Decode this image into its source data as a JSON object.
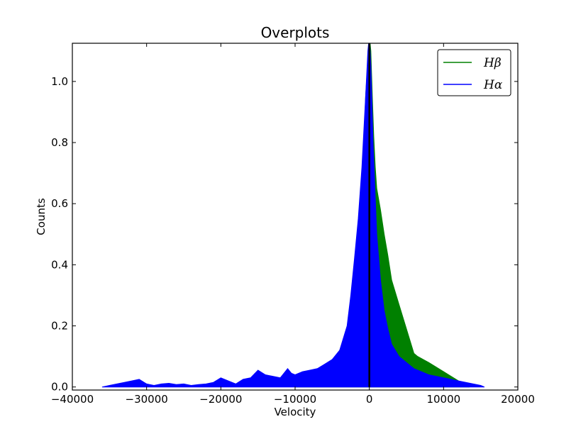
{
  "chart_data": {
    "type": "area",
    "title": "Overplots",
    "xlabel": "Velocity",
    "ylabel": "Counts",
    "xlim": [
      -40000,
      20000
    ],
    "ylim": [
      -0.01,
      1.125
    ],
    "xticks": [
      -40000,
      -30000,
      -20000,
      -10000,
      0,
      10000,
      20000
    ],
    "xtick_labels": [
      "−40000",
      "−30000",
      "−20000",
      "−10000",
      "0",
      "10000",
      "20000"
    ],
    "yticks": [
      0.0,
      0.2,
      0.4,
      0.6,
      0.8,
      1.0
    ],
    "ytick_labels": [
      "0.0",
      "0.2",
      "0.4",
      "0.6",
      "0.8",
      "1.0"
    ],
    "grid": false,
    "legend": {
      "position": "top-right"
    },
    "vertical_line": {
      "x": 0,
      "color": "#000000"
    },
    "series": [
      {
        "name": "Hβ",
        "color": "#008000",
        "x": [
          -10000,
          -9500,
          -9000,
          -8000,
          -7000,
          -6000,
          -5000,
          -4500,
          -4000,
          -3000,
          -2500,
          -2000,
          -1500,
          -1000,
          -500,
          0,
          200,
          400,
          600,
          800,
          1000,
          1500,
          2000,
          2500,
          3000,
          4000,
          5000,
          6000,
          6500,
          8000,
          10000,
          12000,
          13500
        ],
        "y": [
          0.01,
          0.025,
          0.02,
          0.025,
          0.03,
          0.035,
          0.04,
          0.08,
          0.12,
          0.16,
          0.25,
          0.36,
          0.43,
          0.6,
          0.95,
          1.15,
          1.1,
          0.95,
          0.82,
          0.72,
          0.65,
          0.58,
          0.5,
          0.43,
          0.35,
          0.27,
          0.19,
          0.11,
          0.1,
          0.08,
          0.05,
          0.02,
          0.0
        ]
      },
      {
        "name": "Hα",
        "color": "#0000ff",
        "x": [
          -36000,
          -35000,
          -34000,
          -33000,
          -32000,
          -31000,
          -30000,
          -29000,
          -28000,
          -27000,
          -26000,
          -25000,
          -24000,
          -23000,
          -22000,
          -21000,
          -20000,
          -19000,
          -18000,
          -17000,
          -16000,
          -15000,
          -14000,
          -13000,
          -12000,
          -11000,
          -10500,
          -10000,
          -9000,
          -8000,
          -7000,
          -6000,
          -5000,
          -4000,
          -3000,
          -2500,
          -2000,
          -1500,
          -1000,
          -500,
          -200,
          0,
          200,
          500,
          1000,
          1500,
          2000,
          2500,
          3000,
          4000,
          5000,
          6000,
          7000,
          8000,
          9000,
          10000,
          11000,
          12000,
          13000,
          14000,
          15000,
          15500
        ],
        "y": [
          0.0,
          0.005,
          0.01,
          0.015,
          0.02,
          0.025,
          0.01,
          0.005,
          0.01,
          0.012,
          0.008,
          0.01,
          0.005,
          0.008,
          0.01,
          0.015,
          0.03,
          0.02,
          0.01,
          0.025,
          0.03,
          0.055,
          0.04,
          0.035,
          0.03,
          0.06,
          0.045,
          0.04,
          0.05,
          0.055,
          0.06,
          0.075,
          0.09,
          0.12,
          0.2,
          0.3,
          0.42,
          0.55,
          0.72,
          0.95,
          1.1,
          1.15,
          1.05,
          0.8,
          0.5,
          0.35,
          0.25,
          0.19,
          0.14,
          0.1,
          0.08,
          0.06,
          0.05,
          0.04,
          0.035,
          0.03,
          0.025,
          0.02,
          0.015,
          0.01,
          0.005,
          0.0
        ]
      }
    ]
  }
}
